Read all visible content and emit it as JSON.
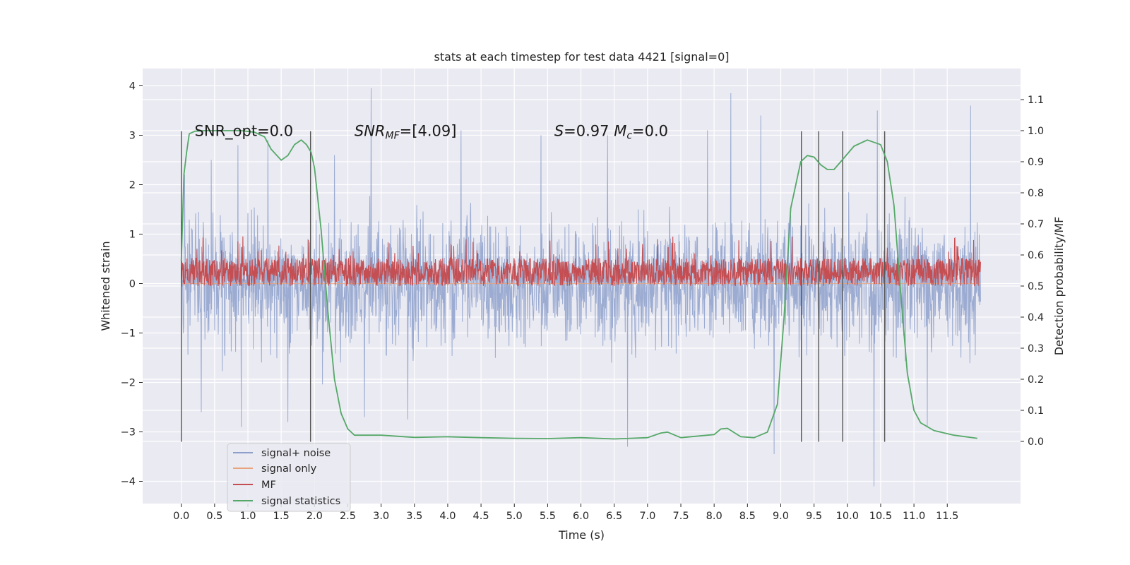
{
  "chart_data": {
    "type": "line",
    "title": "stats at each timestep for test data 4421 [signal=0]",
    "xlabel": "Time (s)",
    "ylabel_left": "Whitened strain",
    "ylabel_right": "Detection probability/MF",
    "xlim": [
      -0.58,
      12.6
    ],
    "ylim_left": [
      -4.45,
      4.35
    ],
    "ylim_right": [
      -0.2,
      1.2
    ],
    "x_ticks": [
      0.0,
      0.5,
      1.0,
      1.5,
      2.0,
      2.5,
      3.0,
      3.5,
      4.0,
      4.5,
      5.0,
      5.5,
      6.0,
      6.5,
      7.0,
      7.5,
      8.0,
      8.5,
      9.0,
      9.5,
      10.0,
      10.5,
      11.0,
      11.5
    ],
    "x_tick_labels": [
      "0.0",
      "0.5",
      "1.0",
      "1.5",
      "2.0",
      "2.5",
      "3.0",
      "3.5",
      "4.0",
      "4.5",
      "5.0",
      "5.5",
      "6.0",
      "6.5",
      "7.0",
      "7.5",
      "8.0",
      "8.5",
      "9.0",
      "9.5",
      "10.0",
      "10.5",
      "11.0",
      "11.5"
    ],
    "y_left_ticks": [
      -4,
      -3,
      -2,
      -1,
      0,
      1,
      2,
      3,
      4
    ],
    "y_left_tick_labels": [
      "−4",
      "−3",
      "−2",
      "−1",
      "0",
      "1",
      "2",
      "3",
      "4"
    ],
    "y_right_ticks": [
      0.0,
      0.1,
      0.2,
      0.3,
      0.4,
      0.5,
      0.6,
      0.7,
      0.8,
      0.9,
      1.0,
      1.1
    ],
    "y_right_tick_labels": [
      "0.0",
      "0.1",
      "0.2",
      "0.3",
      "0.4",
      "0.5",
      "0.6",
      "0.7",
      "0.8",
      "0.9",
      "1.0",
      "1.1"
    ],
    "grid": true,
    "legend_placement": "lower-left",
    "legend": [
      {
        "label": "signal+ noise",
        "color": "#8da0cb"
      },
      {
        "label": "signal only",
        "color": "#e8a27c"
      },
      {
        "label": "MF",
        "color": "#c44e52"
      },
      {
        "label": "signal statistics",
        "color": "#55a868"
      }
    ],
    "annotations": [
      {
        "text": "SNR_opt=0.0",
        "x": 0.2,
        "y": 3.1
      },
      {
        "text_math": "SNR_MF=[4.09]",
        "x": 2.6,
        "y": 3.1
      },
      {
        "text_math": "S=0.97 M_c=0.0",
        "x": 5.6,
        "y": 3.1
      }
    ],
    "vertical_lines": {
      "x": [
        0.0,
        1.94,
        9.31,
        9.57,
        9.93,
        10.56
      ],
      "ymin": -3.2,
      "ymax": 3.08,
      "color": "#555555"
    },
    "series": [
      {
        "name": "signal+ noise",
        "axis": "left",
        "color": "#8da0cb",
        "x_range": [
          0.0,
          12.0
        ],
        "envelope_typical": [
          -1.9,
          1.9
        ],
        "peaks_high": [
          {
            "x": 0.05,
            "y": 2.2
          },
          {
            "x": 0.45,
            "y": 2.5
          },
          {
            "x": 0.85,
            "y": 2.8
          },
          {
            "x": 1.3,
            "y": 2.9
          },
          {
            "x": 2.3,
            "y": 2.6
          },
          {
            "x": 2.85,
            "y": 3.95
          },
          {
            "x": 3.4,
            "y": 2.9
          },
          {
            "x": 4.2,
            "y": 3.1
          },
          {
            "x": 5.4,
            "y": 3.0
          },
          {
            "x": 6.4,
            "y": 3.0
          },
          {
            "x": 7.9,
            "y": 3.1
          },
          {
            "x": 8.25,
            "y": 3.85
          },
          {
            "x": 8.7,
            "y": 3.4
          },
          {
            "x": 10.45,
            "y": 3.5
          },
          {
            "x": 11.85,
            "y": 3.6
          }
        ],
        "peaks_low": [
          {
            "x": 0.3,
            "y": -2.6
          },
          {
            "x": 0.9,
            "y": -2.9
          },
          {
            "x": 1.6,
            "y": -2.8
          },
          {
            "x": 2.75,
            "y": -2.7
          },
          {
            "x": 3.4,
            "y": -2.75
          },
          {
            "x": 6.7,
            "y": -3.3
          },
          {
            "x": 8.9,
            "y": -3.45
          },
          {
            "x": 10.4,
            "y": -4.1
          },
          {
            "x": 11.2,
            "y": -2.9
          }
        ]
      },
      {
        "name": "signal only",
        "axis": "left",
        "color": "#e8a27c",
        "x": [
          0.0,
          12.0
        ],
        "y": [
          0.0,
          0.0
        ]
      },
      {
        "name": "MF",
        "axis": "right",
        "color": "#c44e52",
        "x_range": [
          0.0,
          12.0
        ],
        "band": [
          0.5,
          0.59
        ],
        "peak_max": 0.66
      },
      {
        "name": "signal statistics",
        "axis": "right",
        "color": "#55a868",
        "x": [
          0.0,
          0.04,
          0.08,
          0.12,
          0.2,
          0.35,
          0.6,
          0.9,
          1.1,
          1.25,
          1.35,
          1.5,
          1.6,
          1.7,
          1.8,
          1.88,
          1.95,
          2.0,
          2.1,
          2.2,
          2.3,
          2.4,
          2.5,
          2.6,
          2.8,
          3.0,
          3.5,
          4.0,
          4.5,
          5.0,
          5.5,
          6.0,
          6.5,
          7.0,
          7.2,
          7.3,
          7.5,
          8.0,
          8.1,
          8.2,
          8.4,
          8.6,
          8.8,
          8.95,
          9.05,
          9.15,
          9.3,
          9.4,
          9.5,
          9.6,
          9.7,
          9.8,
          9.9,
          10.1,
          10.3,
          10.5,
          10.6,
          10.7,
          10.8,
          10.9,
          11.0,
          11.1,
          11.3,
          11.6,
          11.95
        ],
        "y": [
          0.58,
          0.86,
          0.93,
          0.99,
          0.998,
          1.0,
          1.0,
          1.0,
          0.995,
          0.98,
          0.94,
          0.905,
          0.92,
          0.955,
          0.97,
          0.955,
          0.93,
          0.88,
          0.68,
          0.42,
          0.2,
          0.09,
          0.04,
          0.02,
          0.02,
          0.02,
          0.013,
          0.015,
          0.012,
          0.01,
          0.009,
          0.012,
          0.008,
          0.012,
          0.027,
          0.03,
          0.012,
          0.022,
          0.04,
          0.042,
          0.015,
          0.012,
          0.03,
          0.12,
          0.4,
          0.75,
          0.9,
          0.92,
          0.915,
          0.89,
          0.875,
          0.875,
          0.9,
          0.95,
          0.97,
          0.955,
          0.9,
          0.76,
          0.48,
          0.22,
          0.1,
          0.06,
          0.035,
          0.02,
          0.01
        ]
      }
    ]
  }
}
